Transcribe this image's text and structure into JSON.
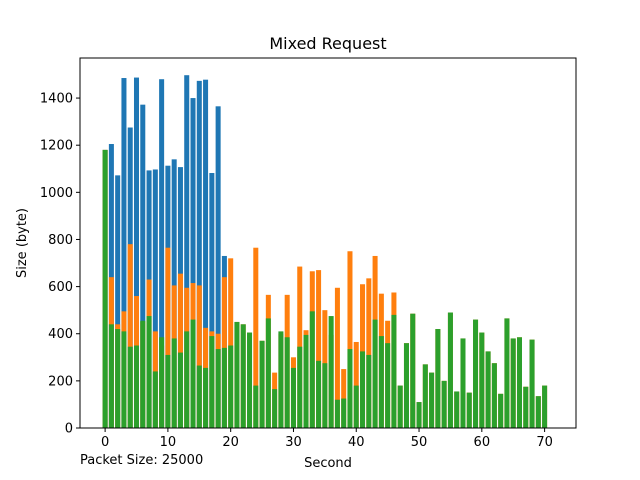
{
  "footnote": "Packet Size: 25000",
  "chart_data": {
    "type": "bar",
    "stacking": "overlay",
    "title": "Mixed Request",
    "xlabel": "Second",
    "ylabel": "Size (byte)",
    "xlim": [
      -4,
      75
    ],
    "ylim": [
      0,
      1570
    ],
    "xticks": [
      0,
      10,
      20,
      30,
      40,
      50,
      60,
      70
    ],
    "yticks": [
      0,
      200,
      400,
      600,
      800,
      1000,
      1200,
      1400
    ],
    "grid": false,
    "legend": "none",
    "x": [
      0,
      1,
      2,
      3,
      4,
      5,
      6,
      7,
      8,
      9,
      10,
      11,
      12,
      13,
      14,
      15,
      16,
      17,
      18,
      19,
      20,
      21,
      22,
      23,
      24,
      25,
      26,
      27,
      28,
      29,
      30,
      31,
      32,
      33,
      34,
      35,
      36,
      37,
      38,
      39,
      40,
      41,
      42,
      43,
      44,
      45,
      46,
      47,
      48,
      49,
      50,
      51,
      52,
      53,
      54,
      55,
      56,
      57,
      58,
      59,
      60,
      61,
      62,
      63,
      64,
      65,
      66,
      67,
      68,
      69,
      70,
      71
    ],
    "series": [
      {
        "color": "#1f77b4",
        "values": [
          1180,
          1205,
          1072,
          1485,
          1275,
          1487,
          1372,
          1093,
          1097,
          1480,
          1113,
          1140,
          1107,
          1497,
          1400,
          1473,
          1478,
          1082,
          1365,
          730,
          0,
          0,
          0,
          0,
          0,
          0,
          0,
          0,
          0,
          0,
          0,
          0,
          0,
          0,
          0,
          0,
          0,
          0,
          0,
          0,
          0,
          0,
          0,
          0,
          0,
          0,
          0,
          0,
          0,
          0,
          0,
          0,
          0,
          0,
          0,
          0,
          0,
          0,
          0,
          0,
          0,
          0,
          0,
          0,
          0,
          0,
          0,
          0,
          0,
          0,
          0,
          0
        ]
      },
      {
        "color": "#ff7f0e",
        "values": [
          1180,
          640,
          440,
          495,
          780,
          560,
          450,
          630,
          410,
          350,
          765,
          605,
          655,
          595,
          615,
          605,
          425,
          410,
          400,
          640,
          720,
          450,
          440,
          405,
          765,
          370,
          565,
          235,
          400,
          565,
          300,
          685,
          415,
          665,
          670,
          500,
          395,
          595,
          250,
          750,
          365,
          610,
          635,
          730,
          570,
          455,
          575,
          180,
          360,
          485,
          110,
          270,
          235,
          420,
          200,
          490,
          155,
          380,
          150,
          460,
          405,
          325,
          275,
          145,
          465,
          380,
          385,
          175,
          375,
          135,
          180,
          0
        ]
      },
      {
        "color": "#2ca02c",
        "values": [
          1180,
          440,
          420,
          410,
          345,
          350,
          455,
          475,
          240,
          385,
          310,
          380,
          320,
          410,
          460,
          265,
          255,
          390,
          335,
          340,
          350,
          450,
          440,
          405,
          180,
          370,
          465,
          165,
          410,
          385,
          255,
          345,
          395,
          495,
          285,
          275,
          475,
          120,
          125,
          335,
          180,
          325,
          310,
          460,
          390,
          360,
          480,
          180,
          360,
          485,
          110,
          270,
          235,
          420,
          200,
          490,
          155,
          380,
          150,
          460,
          405,
          325,
          275,
          145,
          465,
          380,
          385,
          175,
          375,
          135,
          180,
          0
        ]
      }
    ]
  }
}
